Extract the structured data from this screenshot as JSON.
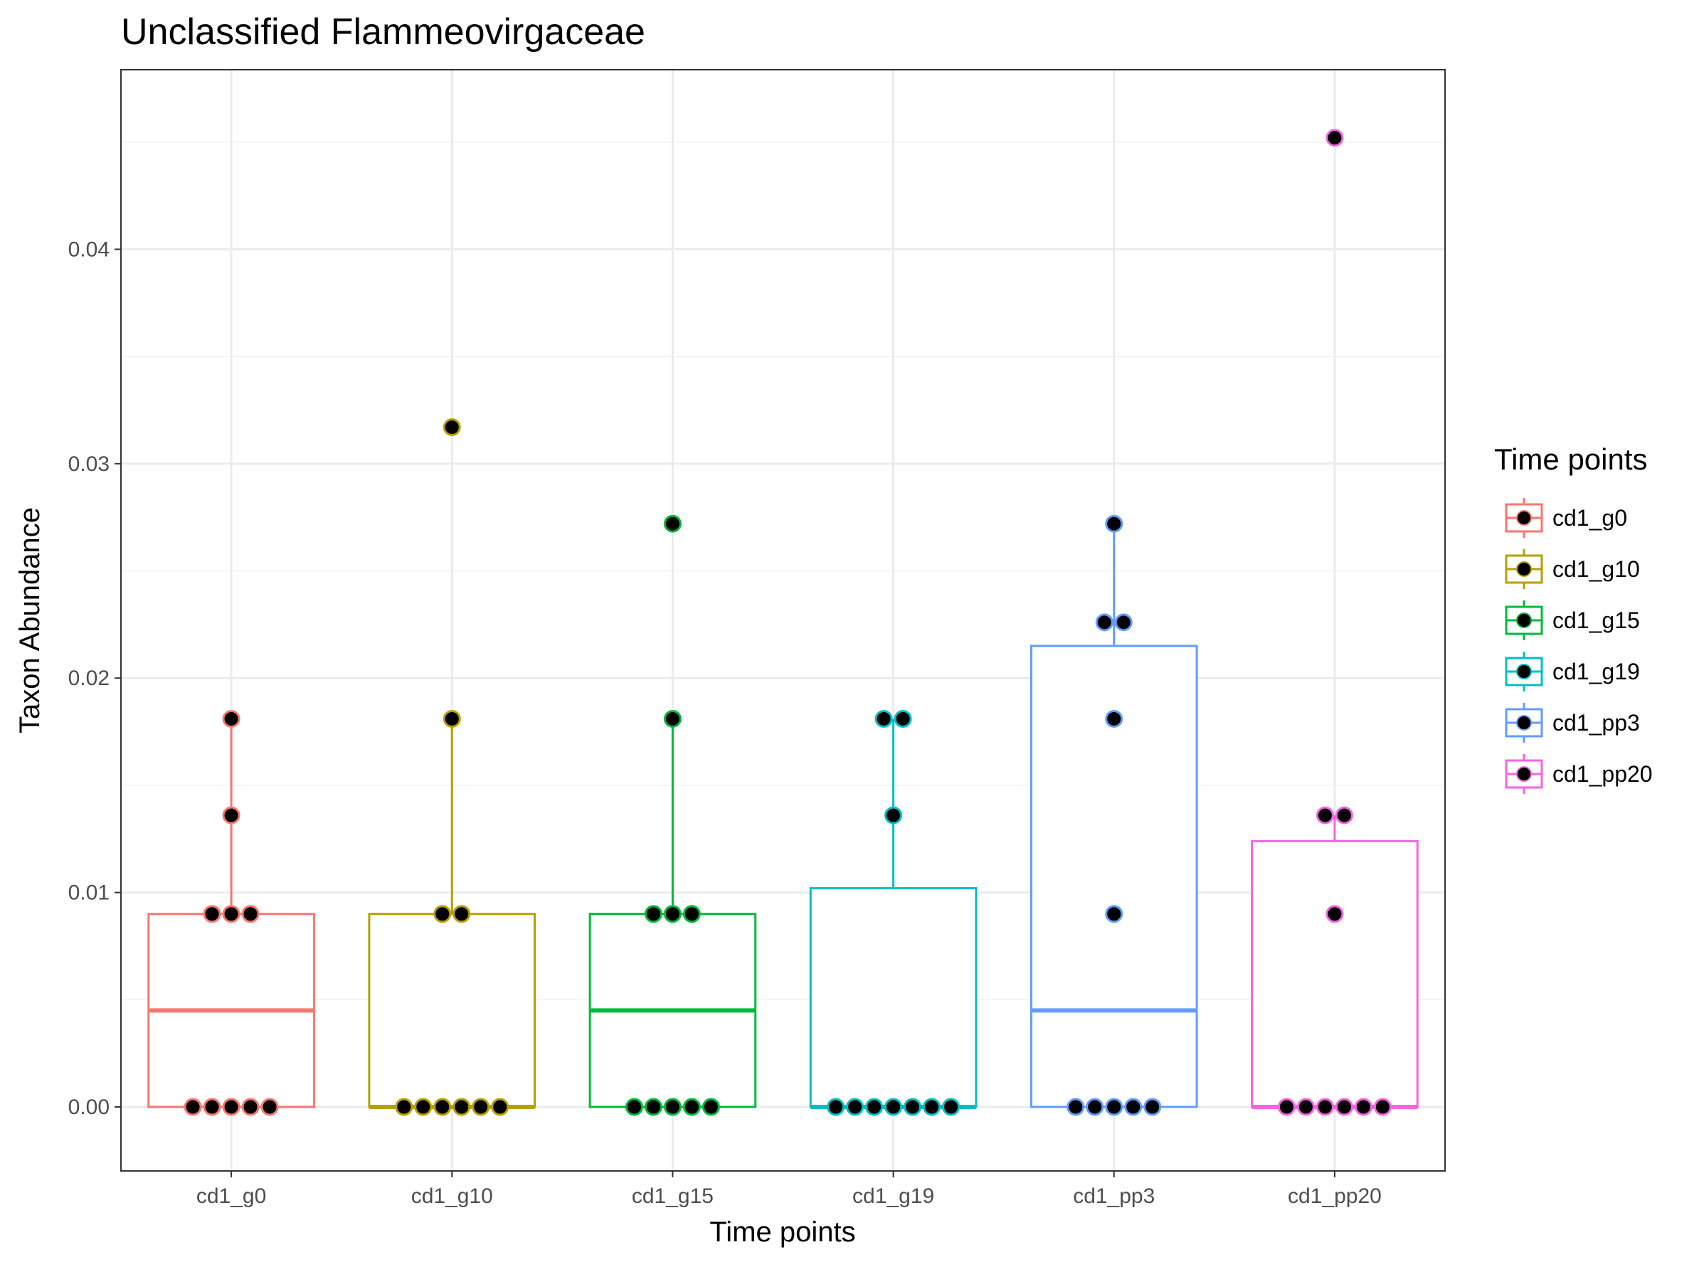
{
  "chart_data": {
    "type": "box",
    "title": "Unclassified Flammeovirgaceae",
    "xlabel": "Time points",
    "ylabel": "Taxon Abundance",
    "ylim": [
      -0.003,
      0.048
    ],
    "yticks": [
      0,
      0.01,
      0.02,
      0.03,
      0.04
    ],
    "ytick_labels": [
      "0.00",
      "0.01",
      "0.02",
      "0.03",
      "0.04"
    ],
    "grid": true,
    "legend": {
      "title": "Time points",
      "position": "right"
    },
    "categories": [
      "cd1_g0",
      "cd1_g10",
      "cd1_g15",
      "cd1_g19",
      "cd1_pp3",
      "cd1_pp20"
    ],
    "series": [
      {
        "name": "cd1_g0",
        "color": "#F8766D",
        "box": {
          "q1": 0.0,
          "median": 0.0045,
          "q3": 0.009,
          "whisker_low": 0.0,
          "whisker_high": 0.0181
        },
        "points": [
          0,
          0,
          0,
          0,
          0,
          0.009,
          0.009,
          0.009,
          0.0136,
          0.0181
        ]
      },
      {
        "name": "cd1_g10",
        "color": "#B79F00",
        "box": {
          "q1": 0.0,
          "median": 0.0,
          "q3": 0.009,
          "whisker_low": 0.0,
          "whisker_high": 0.0181
        },
        "points": [
          0,
          0,
          0,
          0,
          0,
          0,
          0.009,
          0.009,
          0.0181,
          0.0317
        ]
      },
      {
        "name": "cd1_g15",
        "color": "#00BA38",
        "box": {
          "q1": 0.0,
          "median": 0.0045,
          "q3": 0.009,
          "whisker_low": 0.0,
          "whisker_high": 0.0181
        },
        "points": [
          0,
          0,
          0,
          0,
          0,
          0.009,
          0.009,
          0.009,
          0.0181,
          0.0272
        ]
      },
      {
        "name": "cd1_g19",
        "color": "#00BFC4",
        "box": {
          "q1": 0.0,
          "median": 0.0,
          "q3": 0.0102,
          "whisker_low": 0.0,
          "whisker_high": 0.0181
        },
        "points": [
          0,
          0,
          0,
          0,
          0,
          0,
          0,
          0.0136,
          0.0181,
          0.0181
        ]
      },
      {
        "name": "cd1_pp3",
        "color": "#619CFF",
        "box": {
          "q1": 0.0,
          "median": 0.0045,
          "q3": 0.0215,
          "whisker_low": 0.0,
          "whisker_high": 0.0272
        },
        "points": [
          0,
          0,
          0,
          0,
          0,
          0.009,
          0.0181,
          0.0226,
          0.0226,
          0.0272
        ]
      },
      {
        "name": "cd1_pp20",
        "color": "#F564E3",
        "box": {
          "q1": 0.0,
          "median": 0.0,
          "q3": 0.0124,
          "whisker_low": 0.0,
          "whisker_high": 0.0136
        },
        "points": [
          0,
          0,
          0,
          0,
          0,
          0,
          0.009,
          0.0136,
          0.0136,
          0.0452
        ]
      }
    ]
  }
}
